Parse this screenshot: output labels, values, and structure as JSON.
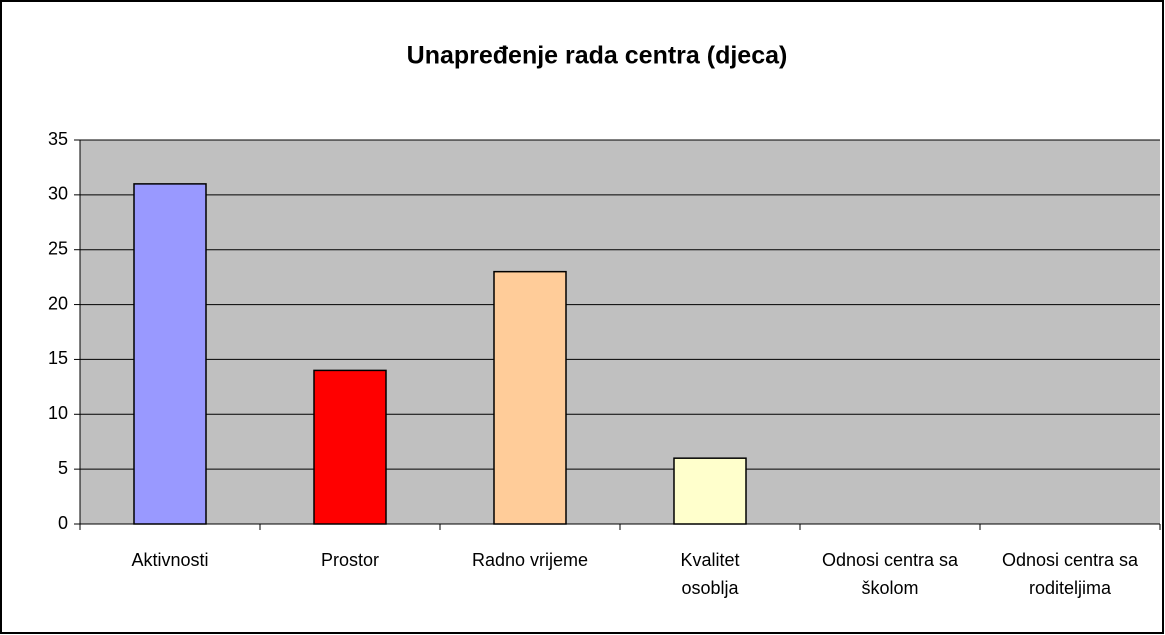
{
  "chart_data": {
    "type": "bar",
    "title": "Unapređenje rada centra (djeca)",
    "categories": [
      "Aktivnosti",
      "Prostor",
      "Radno vrijeme",
      "Kvalitet osoblja",
      "Odnosi centra sa školom",
      "Odnosi centra sa roditeljima"
    ],
    "values": [
      31,
      14,
      23,
      6,
      0,
      0
    ],
    "colors": [
      "#9999ff",
      "#ff0000",
      "#ffcc99",
      "#ffffcc",
      "#ccffff",
      "#660066"
    ],
    "ylim": [
      0,
      35
    ],
    "yticks": [
      0,
      5,
      10,
      15,
      20,
      25,
      30,
      35
    ],
    "grid": true
  }
}
